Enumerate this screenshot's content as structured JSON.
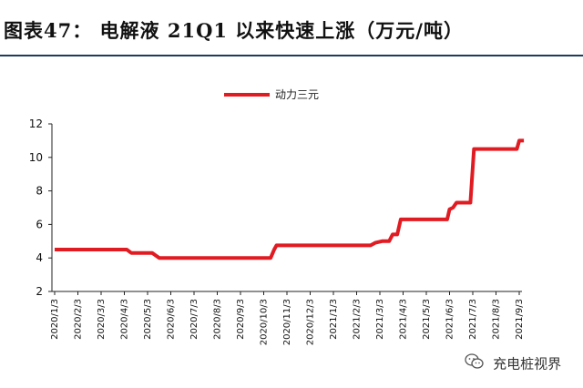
{
  "header": {
    "title": "图表47：   电解液 21Q1 以来快速上涨（万元/吨）"
  },
  "watermark": {
    "text": "充电桩视界",
    "icon": "wechat-icon"
  },
  "chart_data": {
    "type": "line",
    "title": "",
    "xlabel": "",
    "ylabel": "",
    "ylim": [
      2,
      12
    ],
    "yticks": [
      2,
      4,
      6,
      8,
      10,
      12
    ],
    "xticks": [
      "2020/1/3",
      "2020/2/3",
      "2020/3/3",
      "2020/4/3",
      "2020/5/3",
      "2020/6/3",
      "2020/7/3",
      "2020/8/3",
      "2020/9/3",
      "2020/10/3",
      "2020/11/3",
      "2020/12/3",
      "2021/1/3",
      "2021/2/3",
      "2021/3/3",
      "2021/4/3",
      "2021/5/3",
      "2021/6/3",
      "2021/7/3",
      "2021/8/3",
      "2021/9/3"
    ],
    "legend_position": "top-center",
    "grid": false,
    "line_color": "#e01b22",
    "series": [
      {
        "name": "动力三元",
        "points": [
          [
            0.0,
            4.5
          ],
          [
            3.1,
            4.5
          ],
          [
            3.3,
            4.3
          ],
          [
            3.4,
            4.3
          ],
          [
            4.2,
            4.3
          ],
          [
            4.4,
            4.1
          ],
          [
            4.5,
            4.0
          ],
          [
            9.3,
            4.0
          ],
          [
            9.45,
            4.5
          ],
          [
            9.55,
            4.75
          ],
          [
            13.6,
            4.75
          ],
          [
            13.8,
            4.9
          ],
          [
            14.1,
            5.0
          ],
          [
            14.4,
            5.0
          ],
          [
            14.55,
            5.4
          ],
          [
            14.75,
            5.4
          ],
          [
            14.9,
            6.3
          ],
          [
            16.9,
            6.3
          ],
          [
            17.0,
            6.9
          ],
          [
            17.15,
            7.0
          ],
          [
            17.3,
            7.3
          ],
          [
            17.9,
            7.3
          ],
          [
            18.05,
            10.5
          ],
          [
            19.9,
            10.5
          ],
          [
            20.0,
            11.0
          ],
          [
            20.2,
            11.0
          ]
        ]
      }
    ]
  }
}
